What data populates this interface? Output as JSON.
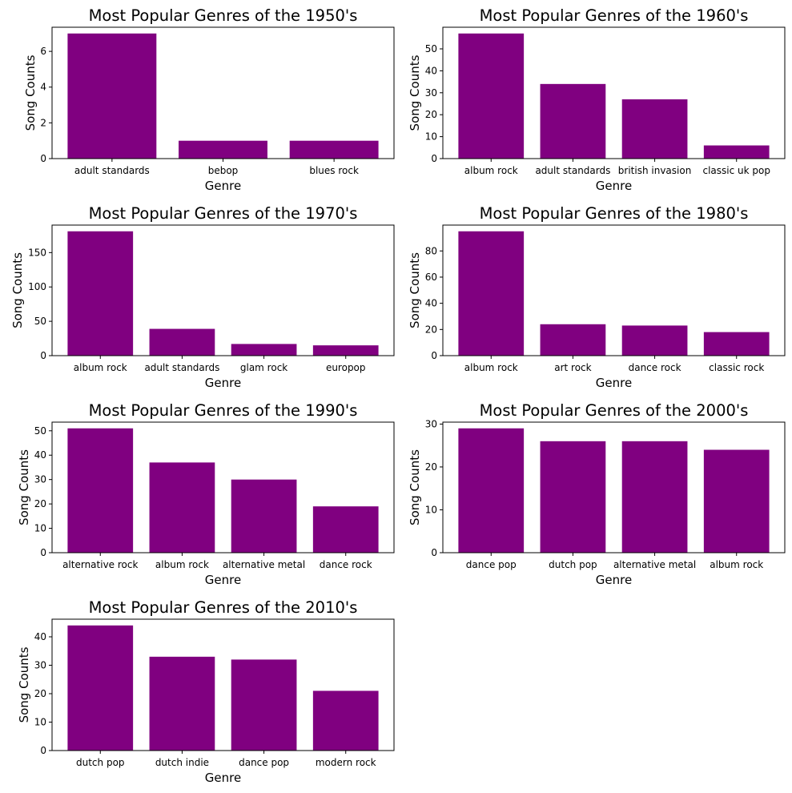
{
  "colors": {
    "bar": "#800080",
    "axis": "#000000",
    "background": "#ffffff"
  },
  "chart_data": [
    {
      "type": "bar",
      "title": "Most Popular Genres of the 1950's",
      "xlabel": "Genre",
      "ylabel": "Song Counts",
      "categories": [
        "adult standards",
        "bebop",
        "blues rock"
      ],
      "values": [
        7,
        1,
        1
      ],
      "ylim": [
        0,
        7.35
      ],
      "yticks": [
        0,
        2,
        4,
        6
      ],
      "grid": false
    },
    {
      "type": "bar",
      "title": "Most Popular Genres of the 1960's",
      "xlabel": "Genre",
      "ylabel": "Song Counts",
      "categories": [
        "album rock",
        "adult standards",
        "british invasion",
        "classic uk pop"
      ],
      "values": [
        57,
        34,
        27,
        6
      ],
      "ylim": [
        0,
        59.85
      ],
      "yticks": [
        0,
        10,
        20,
        30,
        40,
        50
      ],
      "grid": false
    },
    {
      "type": "bar",
      "title": "Most Popular Genres of the 1970's",
      "xlabel": "Genre",
      "ylabel": "Song Counts",
      "categories": [
        "album rock",
        "adult standards",
        "glam rock",
        "europop"
      ],
      "values": [
        181,
        39,
        17,
        15
      ],
      "ylim": [
        0,
        190.05
      ],
      "yticks": [
        0,
        50,
        100,
        150
      ],
      "grid": false
    },
    {
      "type": "bar",
      "title": "Most Popular Genres of the 1980's",
      "xlabel": "Genre",
      "ylabel": "Song Counts",
      "categories": [
        "album rock",
        "art rock",
        "dance rock",
        "classic rock"
      ],
      "values": [
        95,
        24,
        23,
        18
      ],
      "ylim": [
        0,
        99.75
      ],
      "yticks": [
        0,
        20,
        40,
        60,
        80
      ],
      "grid": false
    },
    {
      "type": "bar",
      "title": "Most Popular Genres of the 1990's",
      "xlabel": "Genre",
      "ylabel": "Song Counts",
      "categories": [
        "alternative rock",
        "album rock",
        "alternative metal",
        "dance rock"
      ],
      "values": [
        51,
        37,
        30,
        19
      ],
      "ylim": [
        0,
        53.55
      ],
      "yticks": [
        0,
        10,
        20,
        30,
        40,
        50
      ],
      "grid": false
    },
    {
      "type": "bar",
      "title": "Most Popular Genres of the 2000's",
      "xlabel": "Genre",
      "ylabel": "Song Counts",
      "categories": [
        "dance pop",
        "dutch pop",
        "alternative metal",
        "album rock"
      ],
      "values": [
        29,
        26,
        26,
        24
      ],
      "ylim": [
        0,
        30.45
      ],
      "yticks": [
        0,
        10,
        20,
        30
      ],
      "grid": false
    },
    {
      "type": "bar",
      "title": "Most Popular Genres of the 2010's",
      "xlabel": "Genre",
      "ylabel": "Song Counts",
      "categories": [
        "dutch pop",
        "dutch indie",
        "dance pop",
        "modern rock"
      ],
      "values": [
        44,
        33,
        32,
        21
      ],
      "ylim": [
        0,
        46.2
      ],
      "yticks": [
        0,
        10,
        20,
        30,
        40
      ],
      "grid": false
    }
  ]
}
